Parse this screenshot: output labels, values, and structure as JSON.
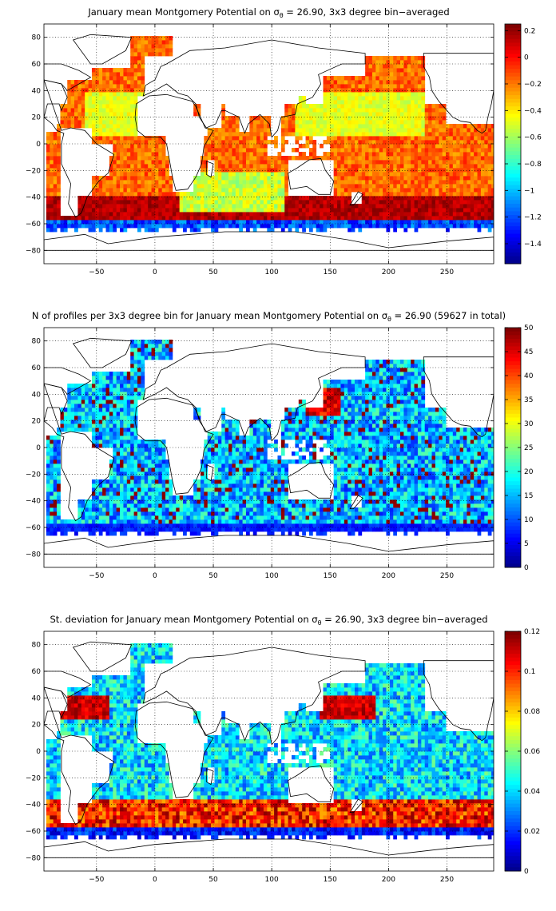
{
  "chart_data": [
    {
      "type": "heatmap",
      "title": {
        "pre": "January mean Montgomery Potential on ",
        "symbol": "σ",
        "sub": "θ",
        "post": " = 26.90, 3x3 degree bin−averaged"
      },
      "xlabel": "",
      "ylabel": "",
      "xlim": [
        -95,
        290
      ],
      "ylim": [
        -90,
        90
      ],
      "xticks": [
        -50,
        0,
        50,
        100,
        150,
        200,
        250
      ],
      "yticks": [
        -80,
        -60,
        -40,
        -20,
        0,
        20,
        40,
        60,
        80
      ],
      "grid": true,
      "colormap": "jet",
      "colorbar": {
        "min": -1.55,
        "max": 0.25,
        "ticks": [
          0.2,
          0,
          -0.2,
          -0.4,
          -0.6,
          -0.8,
          -1,
          -1.2,
          -1.4
        ],
        "tick_labels": [
          "0.2",
          "0",
          "−0.2",
          "−0.4",
          "−0.6",
          "−0.8",
          "−1",
          "−1.2",
          "−1.4"
        ]
      },
      "field": "montgomery_potential"
    },
    {
      "type": "heatmap",
      "title": {
        "pre": "N of profiles per 3x3 degree bin for January mean Montgomery Potential on ",
        "symbol": "σ",
        "sub": "θ",
        "post": " = 26.90 (59627 in total)"
      },
      "xlabel": "",
      "ylabel": "",
      "xlim": [
        -95,
        290
      ],
      "ylim": [
        -90,
        90
      ],
      "xticks": [
        -50,
        0,
        50,
        100,
        150,
        200,
        250
      ],
      "yticks": [
        -80,
        -60,
        -40,
        -20,
        0,
        20,
        40,
        60,
        80
      ],
      "grid": true,
      "colormap": "jet",
      "total_profiles": 59627,
      "colorbar": {
        "min": 0,
        "max": 50,
        "ticks": [
          50,
          45,
          40,
          35,
          30,
          25,
          20,
          15,
          10,
          5,
          0
        ],
        "tick_labels": [
          "50",
          "45",
          "40",
          "35",
          "30",
          "25",
          "20",
          "15",
          "10",
          "5",
          "0"
        ]
      },
      "field": "profile_count"
    },
    {
      "type": "heatmap",
      "title": {
        "pre": "St. deviation for January mean Montgomery Potential on ",
        "symbol": "σ",
        "sub": "θ",
        "post": " = 26.90, 3x3 degree bin−averaged"
      },
      "xlabel": "",
      "ylabel": "",
      "xlim": [
        -95,
        290
      ],
      "ylim": [
        -90,
        90
      ],
      "xticks": [
        -50,
        0,
        50,
        100,
        150,
        200,
        250
      ],
      "yticks": [
        -80,
        -60,
        -40,
        -20,
        0,
        20,
        40,
        60,
        80
      ],
      "grid": true,
      "colormap": "jet",
      "colorbar": {
        "min": 0,
        "max": 0.12,
        "ticks": [
          0.12,
          0.1,
          0.08,
          0.06,
          0.04,
          0.02,
          0
        ],
        "tick_labels": [
          "0.12",
          "0.1",
          "0.08",
          "0.06",
          "0.04",
          "0.02",
          "0"
        ]
      },
      "field": "standard_deviation"
    }
  ],
  "colors": {
    "background": "#ffffff",
    "land": "#ffffff",
    "coastline": "#000000",
    "grid": "#000000",
    "text": "#000000"
  }
}
